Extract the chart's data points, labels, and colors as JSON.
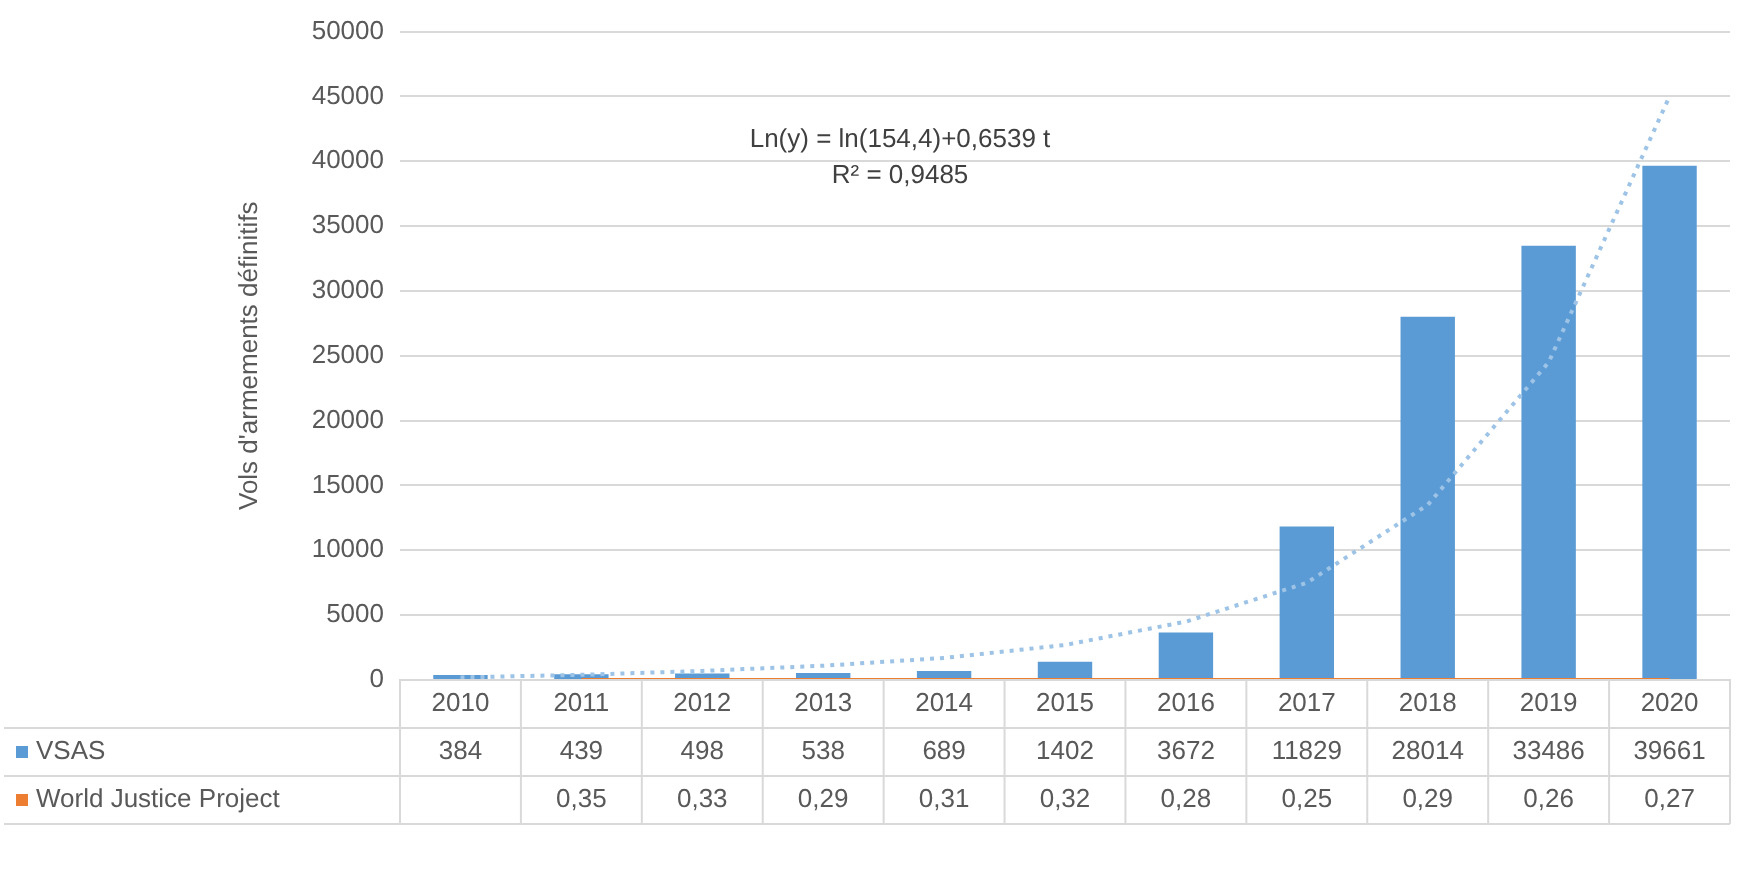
{
  "chart_data": {
    "type": "bar",
    "ylabel": "Vols d'armements définitifs",
    "categories": [
      "2010",
      "2011",
      "2012",
      "2013",
      "2014",
      "2015",
      "2016",
      "2017",
      "2018",
      "2019",
      "2020"
    ],
    "series": [
      {
        "name": "VSAS",
        "color": "#5b9bd5",
        "values": [
          384,
          439,
          498,
          538,
          689,
          1402,
          3672,
          11829,
          28014,
          33486,
          39661
        ],
        "value_labels": [
          "384",
          "439",
          "498",
          "538",
          "689",
          "1402",
          "3672",
          "11829",
          "28014",
          "33486",
          "39661"
        ]
      },
      {
        "name": "World Justice Project",
        "type": "line",
        "color": "#ed7d31",
        "values": [
          null,
          0.35,
          0.33,
          0.29,
          0.31,
          0.32,
          0.28,
          0.25,
          0.29,
          0.26,
          0.27
        ],
        "value_labels": [
          null,
          "0,35",
          "0,33",
          "0,29",
          "0,31",
          "0,32",
          "0,28",
          "0,25",
          "0,29",
          "0,26",
          "0,27"
        ]
      },
      {
        "type": "line",
        "color": "#9dc3e6",
        "line_style": "dotted",
        "values": [
          200,
          400,
          700,
          1100,
          1700,
          2700,
          4500,
          7500,
          13500,
          24500,
          45000
        ]
      }
    ],
    "ylim": [
      0,
      50000
    ],
    "yticks": [
      0,
      5000,
      10000,
      15000,
      20000,
      25000,
      30000,
      35000,
      40000,
      45000,
      50000
    ],
    "grid": "y",
    "legend": "bottom",
    "marker": "none",
    "annotations": [
      "Ln(y) = ln(154,4)+0,6539 t",
      "R² = 0,9485"
    ]
  }
}
